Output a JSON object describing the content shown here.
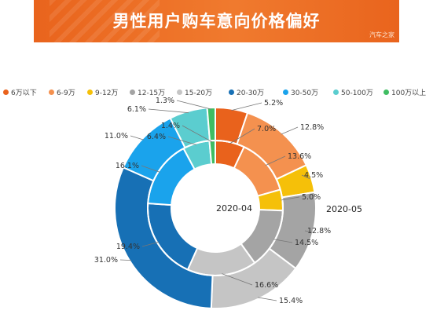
{
  "banner": {
    "title": "男性用户购车意向价格偏好",
    "watermark": "汽车之家"
  },
  "chart_data": {
    "type": "donut",
    "title": "男性用户购车意向价格偏好",
    "categories": [
      "6万以下",
      "6-9万",
      "9-12万",
      "12-15万",
      "15-20万",
      "20-30万",
      "30-50万",
      "50-100万",
      "100万以上"
    ],
    "colors": [
      "#e9621c",
      "#f4914f",
      "#f5c009",
      "#a4a4a4",
      "#c5c5c5",
      "#1770b5",
      "#1aa3ec",
      "#5bcdcf",
      "#3fbd62"
    ],
    "series": [
      {
        "name": "2020-04",
        "ring": "inner",
        "values": [
          7.0,
          13.6,
          5.0,
          14.5,
          16.6,
          19.4,
          16.1,
          6.4,
          1.4
        ],
        "labels": [
          "7.0%",
          "13.6%",
          "5.0%",
          "14.5%",
          "16.6%",
          "19.4%",
          "16.1%",
          "6.4%",
          "1.4%"
        ]
      },
      {
        "name": "2020-05",
        "ring": "outer",
        "values": [
          5.2,
          12.8,
          4.5,
          12.8,
          15.4,
          31.0,
          11.0,
          6.1,
          1.3
        ],
        "labels": [
          "5.2%",
          "12.8%",
          "4.5%",
          "12.8%",
          "15.4%",
          "31.0%",
          "11.0%",
          "6.1%",
          "1.3%"
        ]
      }
    ],
    "legend_position": "top"
  }
}
